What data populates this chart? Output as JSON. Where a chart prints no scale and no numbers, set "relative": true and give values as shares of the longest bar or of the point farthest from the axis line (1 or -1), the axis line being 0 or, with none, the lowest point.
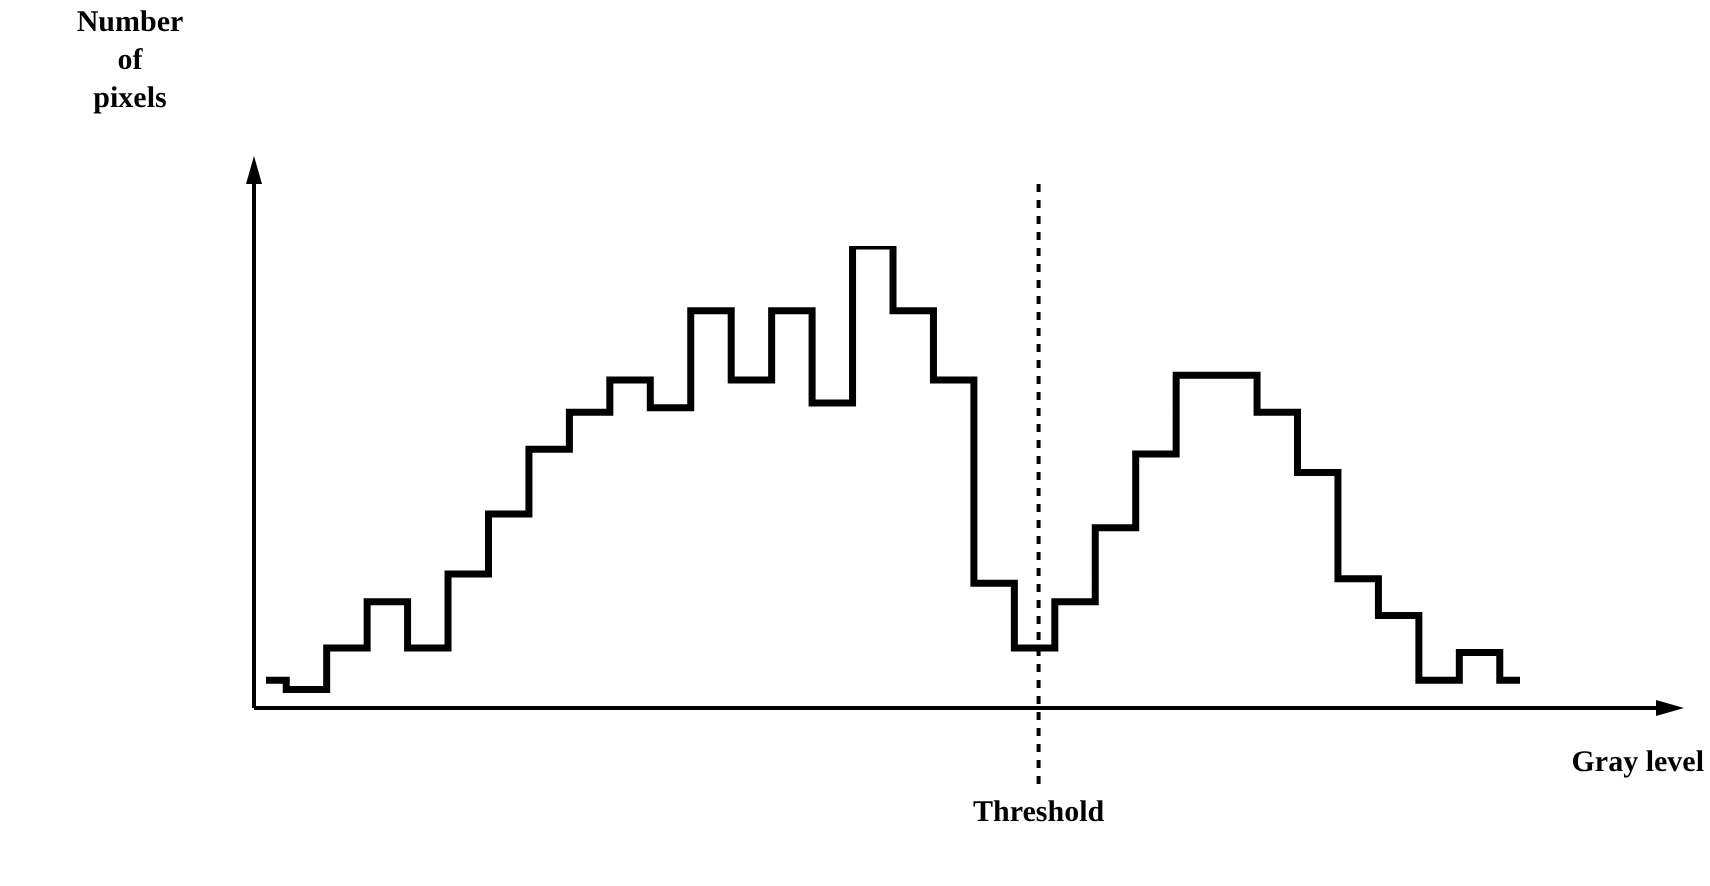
{
  "chart_data": {
    "type": "step",
    "xlabel": "Gray level",
    "ylabel": "Number of pixels",
    "relative": true,
    "tick_labels": false,
    "color": "#000000",
    "categories": [
      null,
      null,
      null,
      null,
      null,
      null,
      null,
      null,
      null,
      null,
      null,
      null,
      null,
      null,
      null,
      null,
      null,
      null,
      null,
      null,
      null,
      null,
      null,
      null,
      null,
      null,
      null,
      null,
      null,
      null,
      null,
      null
    ],
    "values": [
      0.06,
      0.04,
      0.13,
      0.23,
      0.13,
      0.29,
      0.42,
      0.56,
      0.64,
      0.71,
      0.65,
      0.86,
      0.71,
      0.86,
      0.66,
      1,
      0.86,
      0.71,
      0.27,
      0.13,
      0.23,
      0.39,
      0.55,
      0.72,
      0.72,
      0.64,
      0.51,
      0.28,
      0.2,
      0.06,
      0.12,
      0.06
    ],
    "annotations": [
      "Threshold"
    ]
  }
}
